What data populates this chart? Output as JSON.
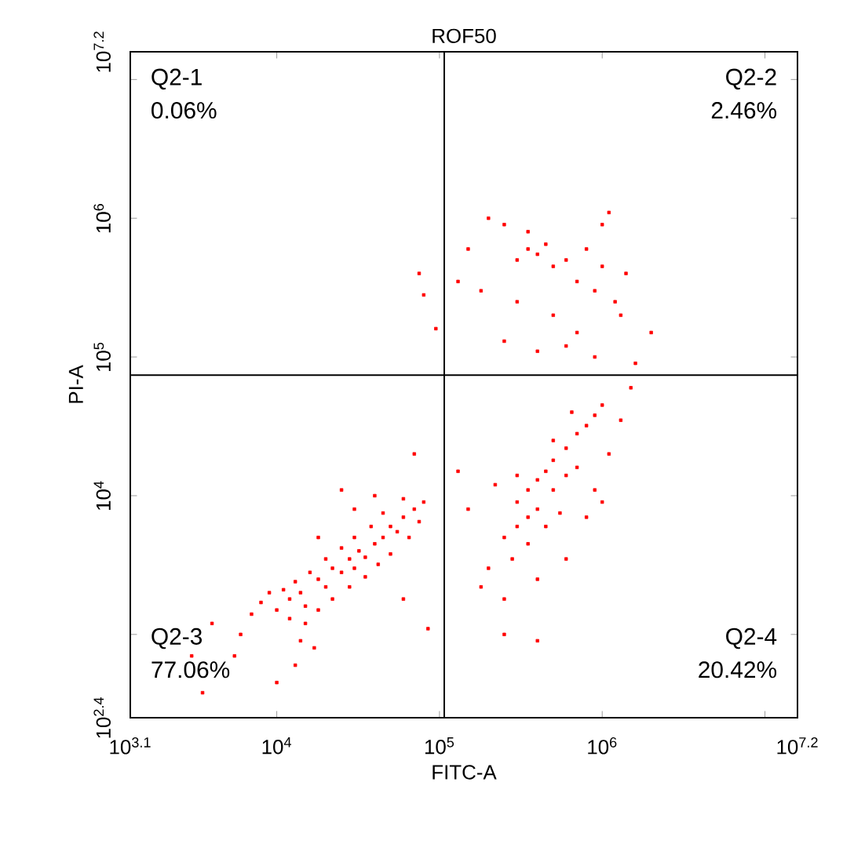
{
  "chart_data": {
    "type": "scatter",
    "title": "ROF50",
    "xlabel": "FITC-A",
    "ylabel": "PI-A",
    "log": "xy",
    "marker": "square",
    "xlim": [
      1259,
      15849000
    ],
    "ylim": [
      251,
      15849000
    ],
    "xticks": [
      {
        "value": 1259,
        "label": "10$^{3.1}$"
      },
      {
        "value": 10000,
        "label": "10$^{4}$"
      },
      {
        "value": 100000,
        "label": "10$^{5}$"
      },
      {
        "value": 1000000,
        "label": "10$^{6}$"
      },
      {
        "value": 10000000,
        "label": null
      },
      {
        "value": 15849000,
        "label": "10$^{7.2}$"
      }
    ],
    "yticks": [
      {
        "value": 251,
        "label": "10$^{2.4}$"
      },
      {
        "value": 1000,
        "label": null
      },
      {
        "value": 10000,
        "label": "10$^{4}$"
      },
      {
        "value": 100000,
        "label": "10$^{5}$"
      },
      {
        "value": 1000000,
        "label": "10$^{6}$"
      },
      {
        "value": 10000000,
        "label": null
      },
      {
        "value": 15849000,
        "label": "10$^{7.2}$"
      }
    ],
    "ref_lines": [
      {
        "axis": "x",
        "value": 107000,
        "color": "#000000"
      },
      {
        "axis": "y",
        "value": 74000,
        "color": "#000000"
      }
    ],
    "annotations": [
      "Q2-1",
      "0.06%",
      "Q2-2",
      "2.46%",
      "Q2-3",
      "77.06%",
      "Q2-4",
      "20.42%"
    ],
    "series": [
      {
        "color": "#ff0000",
        "x": [
          10000,
          12000,
          14000,
          15000,
          18000,
          20000,
          22000,
          25000,
          28000,
          30000,
          32000,
          35000,
          40000,
          45000,
          50000,
          55000,
          60000,
          70000,
          80000,
          20000,
          16000,
          13000,
          11000,
          25000,
          30000,
          38000,
          45000,
          60000,
          12000,
          15000,
          18000,
          22000,
          28000,
          35000,
          42000,
          50000,
          65000,
          75000,
          9000,
          8000,
          7000,
          6000,
          5500,
          14000,
          17000,
          13000,
          30000,
          40000,
          18000,
          85000,
          60000,
          4000,
          3000,
          10000,
          3500,
          25000,
          70000,
          300000,
          350000,
          400000,
          450000,
          500000,
          600000,
          700000,
          800000,
          900000,
          1000000,
          350000,
          300000,
          250000,
          400000,
          500000,
          600000,
          700000,
          280000,
          350000,
          450000,
          550000,
          200000,
          180000,
          250000,
          400000,
          600000,
          800000,
          900000,
          1100000,
          1300000,
          150000,
          130000,
          220000,
          300000,
          500000,
          650000,
          250000,
          400000,
          1500000,
          1000000,
          200000,
          250000,
          150000,
          300000,
          350000,
          400000,
          450000,
          500000,
          600000,
          700000,
          800000,
          900000,
          1000000,
          1100000,
          1200000,
          1400000,
          2000000,
          700000,
          500000,
          300000,
          180000,
          130000,
          250000,
          400000,
          600000,
          900000,
          1300000,
          1600000,
          80000,
          95000,
          75000,
          1000000,
          350000
        ],
        "values": [
          1500,
          1800,
          2000,
          1600,
          2500,
          2200,
          3000,
          2800,
          3500,
          3000,
          4000,
          3600,
          4500,
          5000,
          6000,
          5500,
          7000,
          8000,
          9000,
          3500,
          2800,
          2400,
          2100,
          4200,
          5000,
          6000,
          7500,
          9500,
          1300,
          1200,
          1500,
          1800,
          2200,
          2600,
          3200,
          3800,
          5000,
          6500,
          2000,
          1700,
          1400,
          1000,
          700,
          900,
          800,
          600,
          8000,
          10000,
          5000,
          1100,
          1800,
          1200,
          700,
          450,
          380,
          11000,
          20000,
          9000,
          11000,
          13000,
          15000,
          18000,
          22000,
          28000,
          32000,
          38000,
          45000,
          7000,
          6000,
          5000,
          8000,
          11000,
          14000,
          16000,
          3500,
          4500,
          6000,
          7500,
          3000,
          2200,
          1800,
          2500,
          3500,
          7000,
          11000,
          20000,
          35000,
          8000,
          15000,
          12000,
          14000,
          25000,
          40000,
          1000,
          900,
          60000,
          9000,
          1000000,
          900000,
          600000,
          500000,
          600000,
          550000,
          650000,
          450000,
          500000,
          350000,
          600000,
          300000,
          450000,
          1100000,
          250000,
          400000,
          150000,
          150000,
          200000,
          250000,
          300000,
          350000,
          130000,
          110000,
          120000,
          100000,
          200000,
          90000,
          280000,
          160000,
          400000,
          900000,
          800000
        ]
      }
    ]
  }
}
